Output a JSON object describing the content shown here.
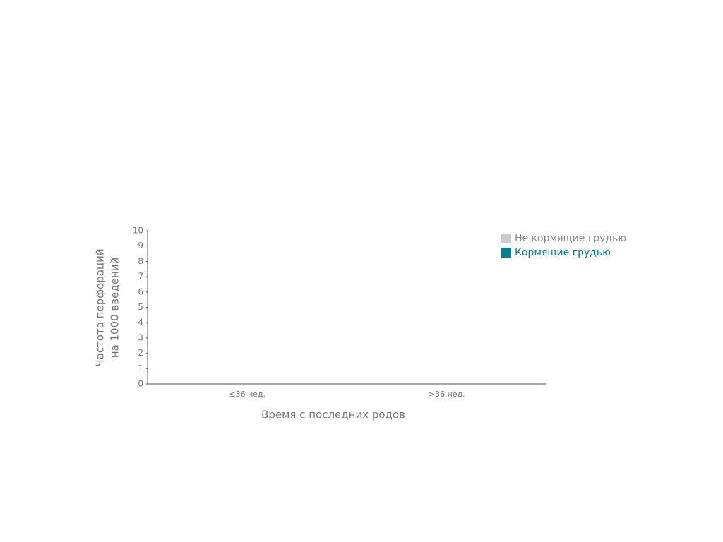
{
  "chart_data": {
    "type": "bar",
    "y_label": [
      "Частота перфораций",
      "на 1000 введений"
    ],
    "x_label": "Время с последних родов",
    "categories": [
      "≤36 нед.",
      ">36 нед."
    ],
    "series": [
      {
        "name": "Не кормящие грудью",
        "color": "#cccccc",
        "values": [
          0,
          0
        ]
      },
      {
        "name": "Кормящие грудью",
        "color": "#00808f",
        "values": [
          0,
          0
        ]
      }
    ],
    "ylim": [
      0,
      10
    ],
    "yticks": [
      0,
      1,
      2,
      3,
      4,
      5,
      6,
      7,
      8,
      9,
      10
    ],
    "legend": "top-right"
  }
}
